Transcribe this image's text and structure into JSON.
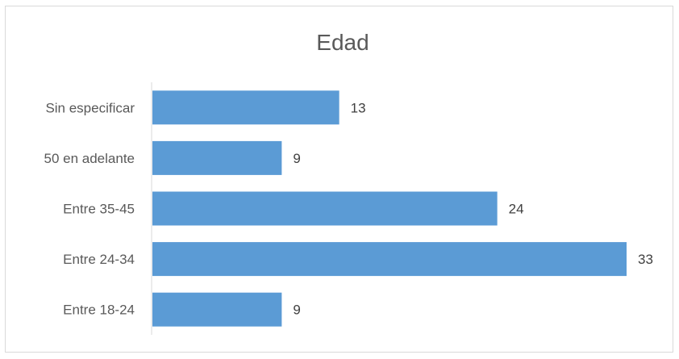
{
  "chart_data": {
    "type": "bar",
    "orientation": "horizontal",
    "title": "Edad",
    "categories": [
      "Entre 18-24",
      "Entre 24-34",
      "Entre 35-45",
      "50 en adelante",
      "Sin especificar"
    ],
    "values": [
      9,
      33,
      24,
      9,
      13
    ],
    "xlim": [
      0,
      33
    ],
    "xlabel": "",
    "ylabel": "",
    "grid": false,
    "data_labels": true,
    "bar_color": "#5b9bd5",
    "axis_color": "#d9d9d9"
  }
}
